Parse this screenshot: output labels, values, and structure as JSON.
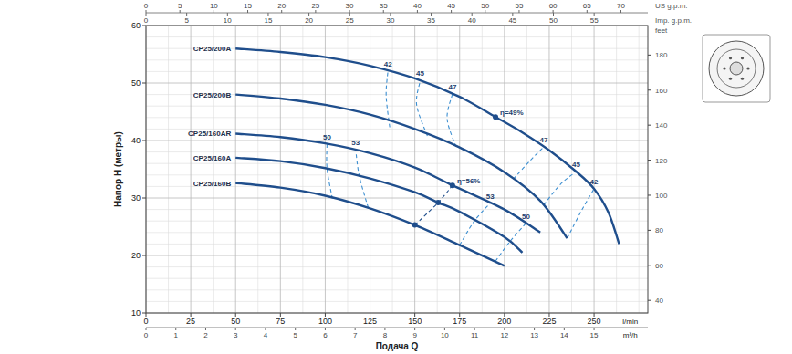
{
  "chart_data": {
    "type": "line",
    "xlabel": "Подача Q",
    "ylabel": "Напор H (метры)",
    "x_unit": "l/min",
    "xlim": [
      0,
      280
    ],
    "xticks": [
      0,
      25,
      50,
      75,
      100,
      125,
      150,
      175,
      200,
      225,
      250
    ],
    "ylim": [
      10,
      60
    ],
    "yticks": [
      10,
      20,
      30,
      40,
      50,
      60
    ],
    "y2label": "feet",
    "y2lim": [
      32.81,
      196.85
    ],
    "y2ticks": [
      40,
      60,
      80,
      100,
      120,
      140,
      160,
      180
    ],
    "x2label": "m³/h",
    "x2lim": [
      0,
      16.8
    ],
    "x2ticks": [
      0,
      1,
      2,
      3,
      4,
      5,
      6,
      7,
      8,
      9,
      10,
      11,
      12,
      13,
      14,
      15
    ],
    "x3label": "US g.p.m.",
    "x3lim": [
      0,
      73.97
    ],
    "x3ticks": [
      0,
      5,
      10,
      15,
      20,
      25,
      30,
      35,
      40,
      45,
      50,
      55,
      60,
      65,
      70
    ],
    "x4label": "Imp. g.p.m.",
    "x4lim": [
      0,
      61.59
    ],
    "x4ticks": [
      0,
      5,
      10,
      15,
      20,
      25,
      30,
      35,
      40,
      45,
      50,
      55
    ],
    "grid": true,
    "series": [
      {
        "name": "CP25/200A",
        "color": "#1f4e8c",
        "line_style": "solid",
        "x": [
          50,
          75,
          100,
          125,
          150,
          175,
          195,
          210,
          225,
          240,
          250,
          258,
          264
        ],
        "values": [
          56,
          55.4,
          54.5,
          53,
          50.8,
          47.6,
          44.1,
          41.4,
          38.3,
          34.6,
          31.6,
          27.5,
          22
        ]
      },
      {
        "name": "CP25/200B",
        "color": "#1f4e8c",
        "line_style": "solid",
        "x": [
          50,
          75,
          100,
          125,
          150,
          175,
          200,
          220,
          235
        ],
        "values": [
          48,
          47.3,
          46.2,
          44.5,
          42,
          38.8,
          34.5,
          29.5,
          23
        ]
      },
      {
        "name": "CP25/160AR",
        "color": "#1f4e8c",
        "line_style": "solid",
        "x": [
          50,
          75,
          100,
          125,
          150,
          171,
          200,
          220
        ],
        "values": [
          41.2,
          40.6,
          39.5,
          37.8,
          35.3,
          32.2,
          28,
          24
        ]
      },
      {
        "name": "CP25/160A",
        "color": "#1f4e8c",
        "line_style": "solid",
        "x": [
          50,
          75,
          100,
          125,
          150,
          163,
          175,
          200,
          210
        ],
        "values": [
          37,
          36.4,
          35.2,
          33.4,
          31,
          29.2,
          27.6,
          23.2,
          20.5
        ]
      },
      {
        "name": "CP25/160B",
        "color": "#1f4e8c",
        "line_style": "solid",
        "x": [
          50,
          75,
          100,
          125,
          150,
          175,
          200
        ],
        "values": [
          32.6,
          31.8,
          30.4,
          28.2,
          25.3,
          21.8,
          18.2
        ]
      }
    ],
    "efficiency_lines": [
      {
        "label": "42",
        "color": "#3d8fd1",
        "line_style": "dashed",
        "x": [
          136,
          134,
          135
        ],
        "values": [
          42.3,
          47.8,
          52.1
        ]
      },
      {
        "label": "45",
        "color": "#3d8fd1",
        "line_style": "dashed",
        "x": [
          157,
          151,
          153
        ],
        "values": [
          40.8,
          46.2,
          50.4
        ]
      },
      {
        "label": "47",
        "color": "#3d8fd1",
        "line_style": "dashed",
        "x": [
          173,
          168,
          171
        ],
        "values": [
          38.9,
          43.8,
          48.1
        ]
      },
      {
        "label": "47",
        "color": "#3d8fd1",
        "line_style": "dashed",
        "x": [
          205,
          214,
          222
        ],
        "values": [
          33.3,
          36.4,
          38.9
        ]
      },
      {
        "label": "45",
        "color": "#3d8fd1",
        "line_style": "dashed",
        "x": [
          222,
          231,
          240
        ],
        "values": [
          28.8,
          32.3,
          34.6
        ]
      },
      {
        "label": "42",
        "color": "#3d8fd1",
        "line_style": "dashed",
        "x": [
          235,
          243,
          250
        ],
        "values": [
          23,
          27.8,
          31.6
        ]
      },
      {
        "label": "50",
        "color": "#3d8fd1",
        "line_style": "dashed",
        "x": [
          104,
          101,
          101
        ],
        "values": [
          29.9,
          35.1,
          39.4
        ]
      },
      {
        "label": "53",
        "color": "#3d8fd1",
        "line_style": "dashed",
        "x": [
          124,
          119,
          117
        ],
        "values": [
          28.3,
          33.8,
          38.4
        ]
      },
      {
        "label": "53",
        "color": "#3d8fd1",
        "line_style": "dashed",
        "x": [
          175,
          183,
          192
        ],
        "values": [
          21.8,
          25.9,
          29.1
        ]
      },
      {
        "label": "50",
        "color": "#3d8fd1",
        "line_style": "dashed",
        "x": [
          195,
          203,
          212
        ],
        "values": [
          19,
          22.4,
          25.6
        ]
      },
      {
        "label": "η=56%",
        "color": "#1f4e8c",
        "line_style": "dashed",
        "marker": "circle",
        "x": [
          150,
          163,
          171
        ],
        "values": [
          25.3,
          29.2,
          32.2
        ]
      },
      {
        "label": "η=49%",
        "color": "#1f4e8c",
        "line_style": "dashed",
        "marker": "circle",
        "x": [
          195
        ],
        "values": [
          44.1
        ]
      }
    ]
  }
}
